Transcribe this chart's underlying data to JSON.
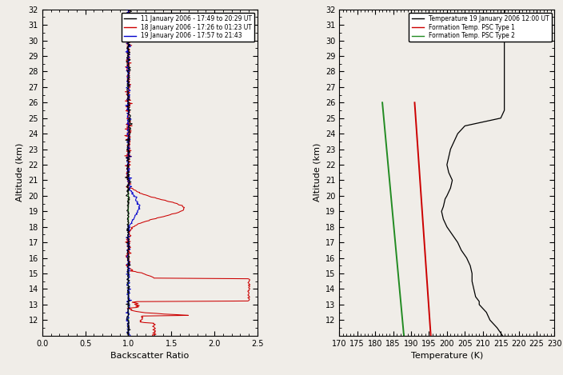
{
  "left_panel": {
    "xlim": [
      0,
      2.5
    ],
    "ylim": [
      11,
      32
    ],
    "xlabel": "Backscatter Ratio",
    "ylabel": "Altitude (km)",
    "yticks": [
      12,
      13,
      14,
      15,
      16,
      17,
      18,
      19,
      20,
      21,
      22,
      23,
      24,
      25,
      26,
      27,
      28,
      29,
      30,
      31,
      32
    ],
    "xticks": [
      0,
      0.5,
      1.0,
      1.5,
      2.0,
      2.5
    ],
    "legend_labels": [
      "11 January 2006 - 17:49 to 20:29 UT",
      "18 January 2006 - 17:26 to 01:23 UT",
      "19 January 2006 - 17:57 to 21:43"
    ],
    "line1_color": "#000000",
    "line2_color": "#cc0000",
    "line3_color": "#0000cc",
    "line_green": "#228B22"
  },
  "right_panel": {
    "xlim": [
      170,
      230
    ],
    "ylim": [
      11,
      32
    ],
    "xlabel": "Temperature (K)",
    "ylabel": "Altitude (km)",
    "yticks": [
      12,
      13,
      14,
      15,
      16,
      17,
      18,
      19,
      20,
      21,
      22,
      23,
      24,
      25,
      26,
      27,
      28,
      29,
      30,
      31,
      32
    ],
    "xticks": [
      170,
      175,
      180,
      185,
      190,
      195,
      200,
      205,
      210,
      215,
      220,
      225,
      230
    ],
    "legend_labels": [
      "Temperature 19 January 2006 12:00 UT",
      "Formation Temp. PSC Type 1",
      "Formation Temp. PSC Type 2"
    ],
    "temp_color": "#000000",
    "psc1_color": "#cc0000",
    "psc2_color": "#228B22"
  },
  "fig_bg": "#f0ede8",
  "panel_bg": "#f0ede8"
}
